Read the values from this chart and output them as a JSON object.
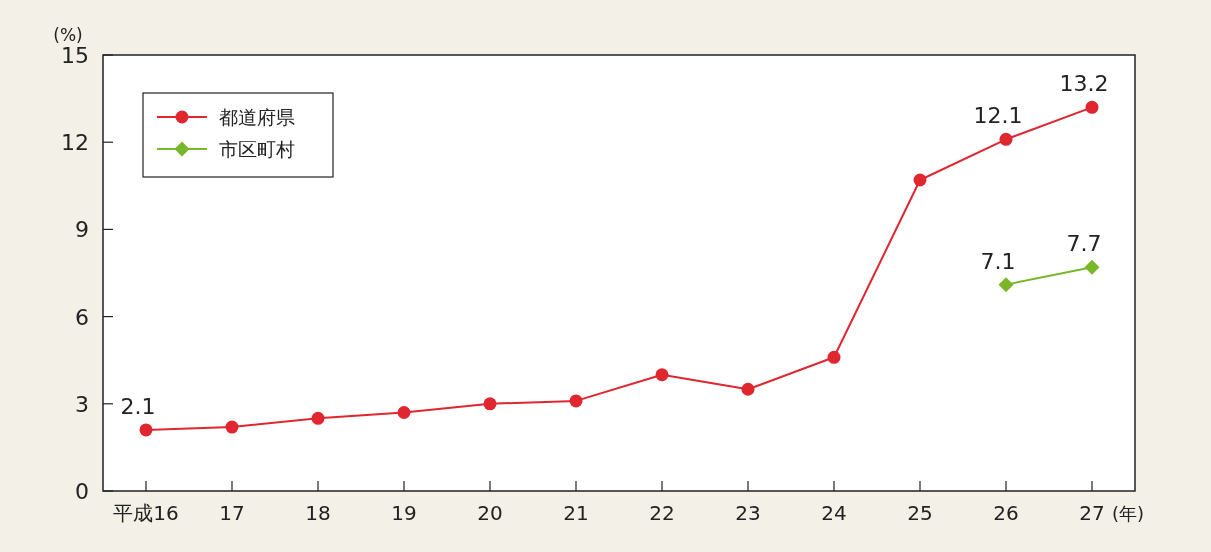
{
  "chart_data": {
    "type": "line",
    "ylabel": "(%)",
    "xlabel": "(年)",
    "categories": [
      "平成16",
      "17",
      "18",
      "19",
      "20",
      "21",
      "22",
      "23",
      "24",
      "25",
      "26",
      "27"
    ],
    "ylim": [
      0,
      15
    ],
    "yticks": [
      0,
      3,
      6,
      9,
      12,
      15
    ],
    "grid": false,
    "legend": "top left",
    "series": [
      {
        "name": "都道府県",
        "color": "#e0262f",
        "marker": "circle",
        "values": [
          2.1,
          2.2,
          2.5,
          2.7,
          3.0,
          3.1,
          4.0,
          3.5,
          4.6,
          10.7,
          12.1,
          13.2
        ],
        "value_labels": [
          "2.1",
          null,
          null,
          null,
          null,
          null,
          null,
          null,
          null,
          null,
          "12.1",
          "13.2"
        ]
      },
      {
        "name": "市区町村",
        "color": "#7ab62a",
        "marker": "diamond",
        "values": [
          null,
          null,
          null,
          null,
          null,
          null,
          null,
          null,
          null,
          null,
          7.1,
          7.7
        ],
        "value_labels": [
          null,
          null,
          null,
          null,
          null,
          null,
          null,
          null,
          null,
          null,
          "7.1",
          "7.7"
        ]
      }
    ]
  }
}
